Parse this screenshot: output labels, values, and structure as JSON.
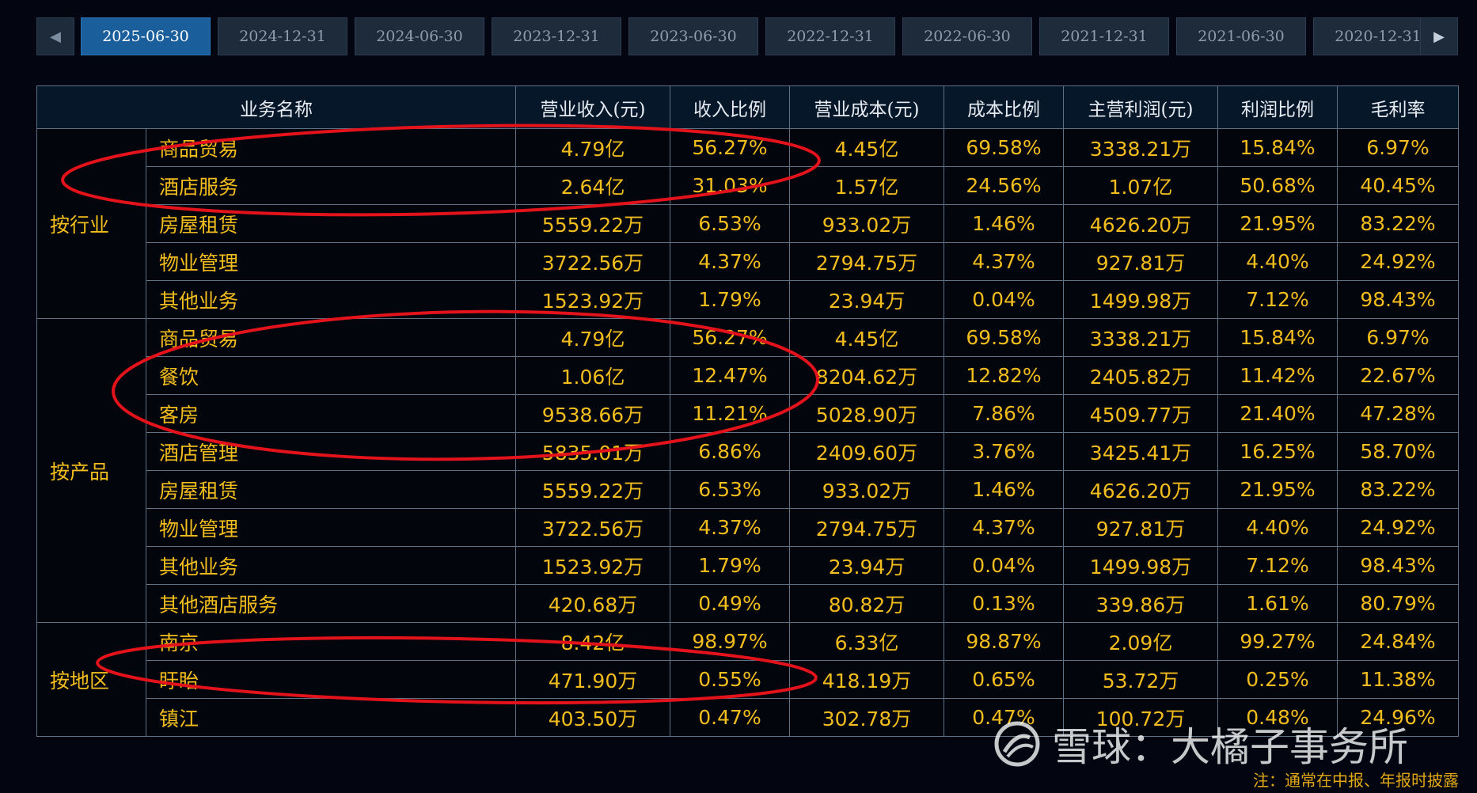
{
  "tabs": [
    {
      "label": "2025-06-30",
      "active": true
    },
    {
      "label": "2024-12-31"
    },
    {
      "label": "2024-06-30"
    },
    {
      "label": "2023-12-31"
    },
    {
      "label": "2023-06-30"
    },
    {
      "label": "2022-12-31"
    },
    {
      "label": "2022-06-30"
    },
    {
      "label": "2021-12-31"
    },
    {
      "label": "2021-06-30"
    },
    {
      "label": "2020-12-31"
    }
  ],
  "nav": {
    "prev_icon": "◀",
    "next_icon": "▶"
  },
  "headers": [
    "业务名称",
    "营业收入(元)",
    "收入比例",
    "营业成本(元)",
    "成本比例",
    "主营利润(元)",
    "利润比例",
    "毛利率"
  ],
  "groups": [
    {
      "label": "按行业",
      "rows": [
        [
          "商品贸易",
          "4.79亿",
          "56.27%",
          "4.45亿",
          "69.58%",
          "3338.21万",
          "15.84%",
          "6.97%"
        ],
        [
          "酒店服务",
          "2.64亿",
          "31.03%",
          "1.57亿",
          "24.56%",
          "1.07亿",
          "50.68%",
          "40.45%"
        ],
        [
          "房屋租赁",
          "5559.22万",
          "6.53%",
          "933.02万",
          "1.46%",
          "4626.20万",
          "21.95%",
          "83.22%"
        ],
        [
          "物业管理",
          "3722.56万",
          "4.37%",
          "2794.75万",
          "4.37%",
          "927.81万",
          "4.40%",
          "24.92%"
        ],
        [
          "其他业务",
          "1523.92万",
          "1.79%",
          "23.94万",
          "0.04%",
          "1499.98万",
          "7.12%",
          "98.43%"
        ]
      ]
    },
    {
      "label": "按产品",
      "rows": [
        [
          "商品贸易",
          "4.79亿",
          "56.27%",
          "4.45亿",
          "69.58%",
          "3338.21万",
          "15.84%",
          "6.97%"
        ],
        [
          "餐饮",
          "1.06亿",
          "12.47%",
          "8204.62万",
          "12.82%",
          "2405.82万",
          "11.42%",
          "22.67%"
        ],
        [
          "客房",
          "9538.66万",
          "11.21%",
          "5028.90万",
          "7.86%",
          "4509.77万",
          "21.40%",
          "47.28%"
        ],
        [
          "酒店管理",
          "5835.01万",
          "6.86%",
          "2409.60万",
          "3.76%",
          "3425.41万",
          "16.25%",
          "58.70%"
        ],
        [
          "房屋租赁",
          "5559.22万",
          "6.53%",
          "933.02万",
          "1.46%",
          "4626.20万",
          "21.95%",
          "83.22%"
        ],
        [
          "物业管理",
          "3722.56万",
          "4.37%",
          "2794.75万",
          "4.37%",
          "927.81万",
          "4.40%",
          "24.92%"
        ],
        [
          "其他业务",
          "1523.92万",
          "1.79%",
          "23.94万",
          "0.04%",
          "1499.98万",
          "7.12%",
          "98.43%"
        ],
        [
          "其他酒店服务",
          "420.68万",
          "0.49%",
          "80.82万",
          "0.13%",
          "339.86万",
          "1.61%",
          "80.79%"
        ]
      ]
    },
    {
      "label": "按地区",
      "rows": [
        [
          "南京",
          "8.42亿",
          "98.97%",
          "6.33亿",
          "98.87%",
          "2.09亿",
          "99.27%",
          "24.84%"
        ],
        [
          "盱眙",
          "471.90万",
          "0.55%",
          "418.19万",
          "0.65%",
          "53.72万",
          "0.25%",
          "11.38%"
        ],
        [
          "镇江",
          "403.50万",
          "0.47%",
          "302.78万",
          "0.47%",
          "100.72万",
          "0.48%",
          "24.96%"
        ]
      ]
    }
  ],
  "watermark": {
    "text": "雪球：大橘子事务所"
  },
  "footnote": "注：通常在中报、年报时披露",
  "colors": {
    "value": "#f2bd1d",
    "active_tab": "#1b5e9c",
    "ellipse": "#e4121b",
    "grid": "#5d7287"
  }
}
